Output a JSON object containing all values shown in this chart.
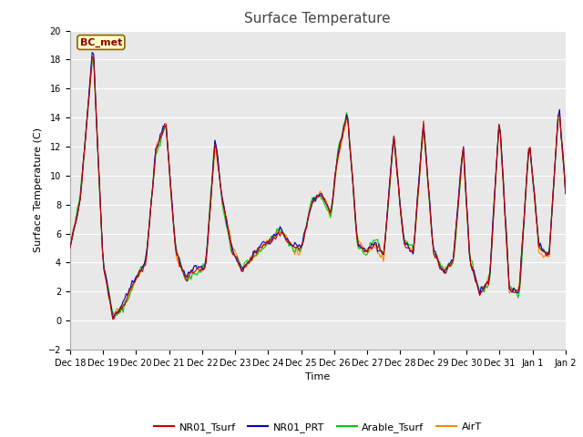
{
  "title": "Surface Temperature",
  "ylabel": "Surface Temperature (C)",
  "xlabel": "Time",
  "ylim": [
    -2,
    20
  ],
  "annotation": "BC_met",
  "fig_bg_color": "#ffffff",
  "plot_bg_color": "#e8e8e8",
  "line_colors": {
    "NR01_Tsurf": "#cc0000",
    "NR01_PRT": "#0000cc",
    "Arable_Tsurf": "#00cc00",
    "AirT": "#ff8800"
  },
  "legend_labels": [
    "NR01_Tsurf",
    "NR01_PRT",
    "Arable_Tsurf",
    "AirT"
  ],
  "tick_labels": [
    "Dec 18",
    "Dec 19",
    "Dec 20",
    "Dec 21",
    "Dec 22",
    "Dec 23",
    "Dec 24",
    "Dec 25",
    "Dec 26",
    "Dec 27",
    "Dec 28",
    "Dec 29",
    "Dec 30",
    "Dec 31",
    "Jan 1",
    "Jan 2"
  ],
  "num_points": 336,
  "seed": 42
}
